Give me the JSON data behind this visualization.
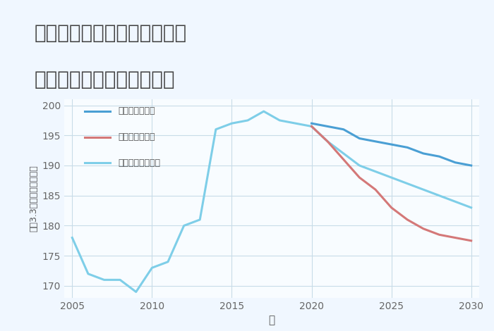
{
  "title_line1": "兵庫県西宮市上ヶ原一番町の",
  "title_line2": "中古マンションの価格推移",
  "xlabel": "年",
  "ylabel": "平（3.3㎡）単価（万円）",
  "background_color": "#f0f8ff",
  "plot_background": "#f8fcff",
  "grid_color": "#c8dce8",
  "normal_color": "#7ecee8",
  "good_color": "#4a9fd4",
  "bad_color": "#d47878",
  "normal_label": "ノーマルシナリオ",
  "good_label": "グッドシナリオ",
  "bad_label": "バッドシナリオ",
  "normal_years": [
    2005,
    2006,
    2007,
    2008,
    2009,
    2010,
    2011,
    2012,
    2013,
    2014,
    2015,
    2016,
    2017,
    2018,
    2019,
    2020,
    2021,
    2022,
    2023,
    2024,
    2025,
    2026,
    2027,
    2028,
    2029,
    2030
  ],
  "normal_values": [
    178,
    172,
    171,
    171,
    169,
    173,
    174,
    180,
    181,
    196,
    197,
    197.5,
    199,
    197.5,
    197,
    196.5,
    194,
    192,
    190,
    189,
    188,
    187,
    186,
    185,
    184,
    183
  ],
  "good_years": [
    2020,
    2021,
    2022,
    2023,
    2024,
    2025,
    2026,
    2027,
    2028,
    2029,
    2030
  ],
  "good_values": [
    197,
    196.5,
    196,
    194.5,
    194,
    193.5,
    193,
    192,
    191.5,
    190.5,
    190
  ],
  "bad_years": [
    2020,
    2021,
    2022,
    2023,
    2024,
    2025,
    2026,
    2027,
    2028,
    2029,
    2030
  ],
  "bad_values": [
    196.5,
    194,
    191,
    188,
    186,
    183,
    181,
    179.5,
    178.5,
    178,
    177.5
  ],
  "xlim": [
    2004.5,
    2030.5
  ],
  "ylim": [
    168,
    201
  ],
  "yticks": [
    170,
    175,
    180,
    185,
    190,
    195,
    200
  ],
  "xticks": [
    2005,
    2010,
    2015,
    2020,
    2025,
    2030
  ],
  "line_width": 2.2
}
